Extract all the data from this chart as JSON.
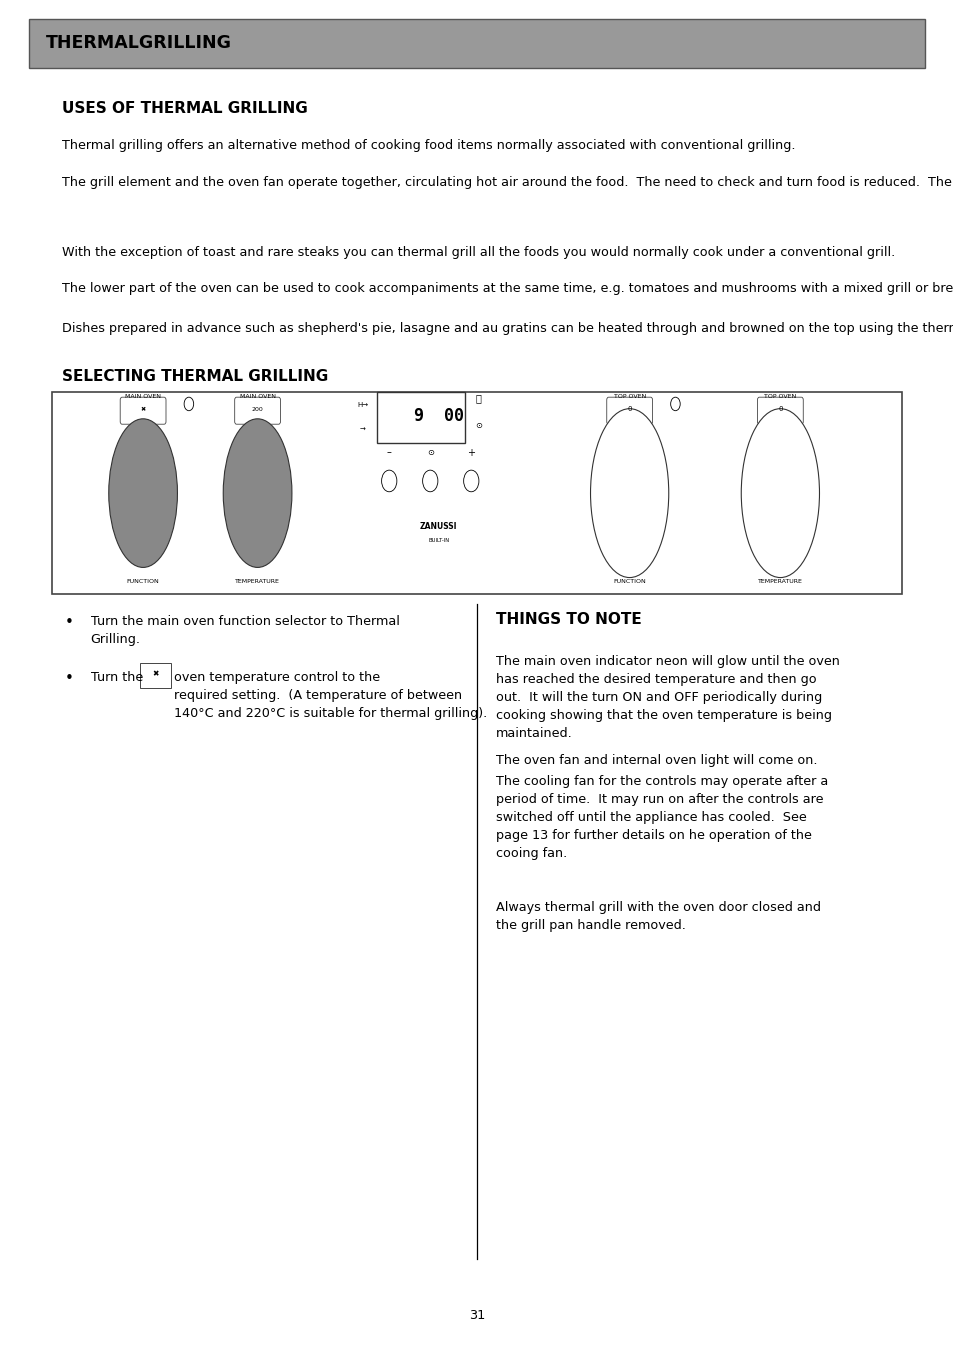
{
  "page_title": "THERMALGRILLING",
  "title_bg": "#999999",
  "title_text_color": "#000000",
  "section1_title": "USES OF THERMAL GRILLING",
  "para1": "Thermal grilling offers an alternative method of cooking food items normally associated with conventional grilling.",
  "para2": "The grill element and the oven fan operate together, circulating hot air around the food.  The need to check and turn food is reduced.  Thermal fan assisted grilling helps to minimise cooking smells in the kitchen and allows you to grill with the oven door closed.",
  "para3": "With the exception of toast and rare steaks you can thermal grill all the foods you would normally cook under a conventional grill.",
  "para4": "The lower part of the oven can be used to cook accompaniments at the same time, e.g. tomatoes and mushrooms with a mixed grill or breakfast.",
  "para5": "Dishes prepared in advance such as shepherd's pie, lasagne and au gratins can be heated through and browned on the top using the thermal grilling function.",
  "section2_title": "SELECTING THERMAL GRILLING",
  "bullet1": "Turn the main oven function selector to Thermal\nGrilling.",
  "bullet2_line2": "oven temperature control to the\nrequired setting.  (A temperature of between\n140°C and 220°C is suitable for thermal grilling).",
  "things_title": "THINGS TO NOTE",
  "things_p1": "The main oven indicator neon will glow until the oven\nhas reached the desired temperature and then go\nout.  It will the turn ON and OFF periodically during\ncooking showing that the oven temperature is being\nmaintained.",
  "things_p2": "The oven fan and internal oven light will come on.",
  "things_p3": "The cooling fan for the controls may operate after a\nperiod of time.  It may run on after the controls are\nswitched off until the appliance has cooled.  See\npage 13 for further details on he operation of the\ncooing fan.",
  "things_p4": "Always thermal grill with the oven door closed and\nthe grill pan handle removed.",
  "page_number": "31",
  "bg_color": "#ffffff",
  "text_color": "#000000",
  "body_fontsize": 9.2,
  "header_fontsize": 11.0,
  "title_fontsize": 12.5
}
